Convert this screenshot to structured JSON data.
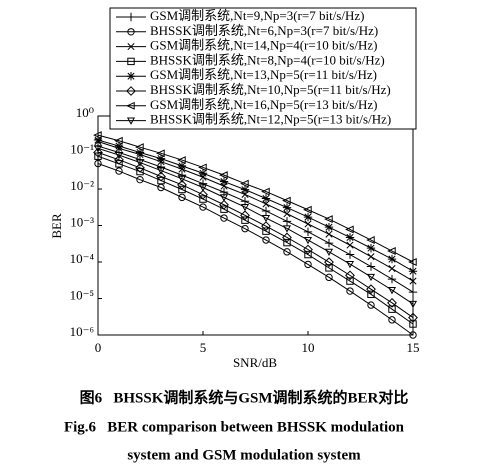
{
  "chart_data": {
    "type": "line",
    "xlabel": "SNR/dB",
    "ylabel": "BER",
    "x": [
      0,
      1,
      2,
      3,
      4,
      5,
      6,
      7,
      8,
      9,
      10,
      11,
      12,
      13,
      14,
      15
    ],
    "xlim": [
      0,
      15
    ],
    "xticks": [
      0,
      5,
      10,
      15
    ],
    "ylim": [
      1e-06,
      1
    ],
    "log_y": true,
    "grid": false,
    "legend": "top",
    "yticks": [
      {
        "value": 1,
        "label": "10⁰"
      },
      {
        "value": 0.1,
        "label": "10⁻¹"
      },
      {
        "value": 0.01,
        "label": "10⁻²"
      },
      {
        "value": 0.001,
        "label": "10⁻³"
      },
      {
        "value": 0.0001,
        "label": "10⁻⁴"
      },
      {
        "value": 1e-05,
        "label": "10⁻⁵"
      },
      {
        "value": 1e-06,
        "label": "10⁻⁶"
      }
    ],
    "series": [
      {
        "name": "GSM调制系统,Nt=9,Np=3(r=7 bit/s/Hz)",
        "color": "#000000",
        "marker": "plus",
        "values": [
          0.15,
          0.1,
          0.064,
          0.04,
          0.024,
          0.014,
          0.0082,
          0.0046,
          0.0025,
          0.0013,
          0.00067,
          0.00033,
          0.00016,
          7.5e-05,
          3.4e-05,
          1.5e-05
        ]
      },
      {
        "name": "BHSSK调制系统,Nt=6,Np=3(r=7 bit/s/Hz)",
        "color": "#000000",
        "marker": "circle",
        "values": [
          0.05,
          0.031,
          0.018,
          0.011,
          0.0059,
          0.0032,
          0.0016,
          0.00082,
          0.0004,
          0.00019,
          8.6e-05,
          3.8e-05,
          1.6e-05,
          6.6e-06,
          2.6e-06,
          1e-06
        ]
      },
      {
        "name": "GSM调制系统,Nt=14,Np=4(r=10 bit/s/Hz)",
        "color": "#000000",
        "marker": "x",
        "values": [
          0.2,
          0.13,
          0.088,
          0.056,
          0.035,
          0.021,
          0.012,
          0.0071,
          0.0039,
          0.0021,
          0.0011,
          0.00058,
          0.00029,
          0.00014,
          6.6e-05,
          3e-05
        ]
      },
      {
        "name": "BHSSK调制系统,Nt=8,Np=4(r=10 bit/s/Hz)",
        "color": "#000000",
        "marker": "square",
        "values": [
          0.079,
          0.049,
          0.03,
          0.017,
          0.0097,
          0.0053,
          0.0028,
          0.0014,
          0.0007,
          0.00034,
          0.00016,
          6.9e-05,
          3e-05,
          1.3e-05,
          5.1e-06,
          2e-06
        ]
      },
      {
        "name": "GSM调制系统,Nt=13,Np=5(r=11 bit/s/Hz)",
        "color": "#000000",
        "marker": "star",
        "values": [
          0.22,
          0.15,
          0.1,
          0.068,
          0.043,
          0.027,
          0.016,
          0.0096,
          0.0055,
          0.0031,
          0.0017,
          0.0009,
          0.00047,
          0.00024,
          0.00012,
          5.6e-05
        ]
      },
      {
        "name": "BHSSK调制系统,Nt=10,Np=5(r=11 bit/s/Hz)",
        "color": "#000000",
        "marker": "diamond",
        "values": [
          0.1,
          0.063,
          0.038,
          0.022,
          0.013,
          0.007,
          0.0037,
          0.0019,
          0.00096,
          0.00047,
          0.00022,
          9.9e-05,
          4.3e-05,
          1.8e-05,
          7.6e-06,
          3e-06
        ]
      },
      {
        "name": "GSM调制系统,Nt=16,Np=5(r=13 bit/s/Hz)",
        "color": "#000000",
        "marker": "triangle-left",
        "values": [
          0.3,
          0.21,
          0.14,
          0.095,
          0.062,
          0.039,
          0.024,
          0.014,
          0.0085,
          0.0048,
          0.0027,
          0.0015,
          0.00078,
          0.0004,
          0.0002,
          0.0001
        ]
      },
      {
        "name": "BHSSK调制系统,Nt=12,Np=5(r=13 bit/s/Hz)",
        "color": "#000000",
        "marker": "triangle-down",
        "values": [
          0.13,
          0.085,
          0.053,
          0.032,
          0.019,
          0.011,
          0.0059,
          0.0032,
          0.0016,
          0.00083,
          0.0004,
          0.00019,
          8.8e-05,
          3.9e-05,
          1.7e-05,
          7.1e-06
        ]
      }
    ],
    "captions": [
      "图6   BHSSK调制系统与GSM调制系统的BER对比",
      "Fig.6   BER comparison between BHSSK modulation",
      "system and GSM modulation system"
    ]
  }
}
